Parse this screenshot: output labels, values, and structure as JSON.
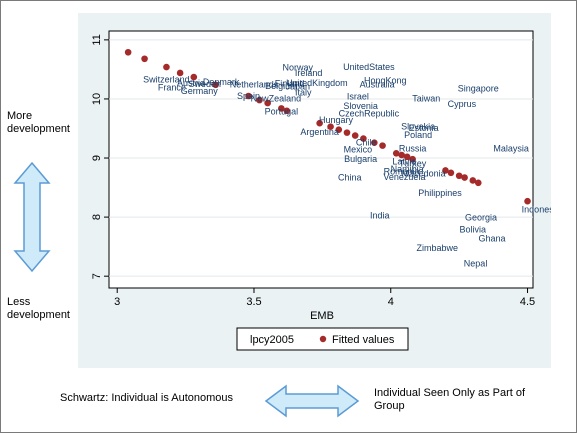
{
  "left_labels": {
    "top": "More development",
    "bottom": "Less development"
  },
  "bottom_labels": {
    "left": "Schwartz: Individual is Autonomous",
    "right": "Individual Seen Only as Part of Group"
  },
  "colors": {
    "panel_bg": "#eaf2f3",
    "plot_bg": "#ffffff",
    "label_text": "#1a3f6b",
    "fitted_marker": "#a52a2a",
    "arrow_fill": "#cfeaf8",
    "arrow_stroke": "#5b9bd5"
  },
  "chart_data": {
    "type": "scatter",
    "xlabel": "EMB",
    "ylabel": "",
    "xlim": [
      2.97,
      4.52
    ],
    "ylim": [
      6.8,
      11.15
    ],
    "xticks": [
      "3",
      "3.5",
      "4",
      "4.5"
    ],
    "yticks": [
      "7",
      "8",
      "9",
      "10",
      "11"
    ],
    "grid": true,
    "legend": {
      "position": "bottom",
      "entries": [
        "lpcy2005",
        "Fitted values"
      ]
    },
    "countries": [
      {
        "label": "Switzerland",
        "x": 3.18,
        "y": 10.32
      },
      {
        "label": "France",
        "x": 3.2,
        "y": 10.18
      },
      {
        "label": "Austria",
        "x": 3.27,
        "y": 10.26
      },
      {
        "label": "Denmark",
        "x": 3.38,
        "y": 10.28
      },
      {
        "label": "Sweden",
        "x": 3.32,
        "y": 10.24
      },
      {
        "label": "Germany",
        "x": 3.3,
        "y": 10.12
      },
      {
        "label": "Netherlands",
        "x": 3.5,
        "y": 10.23
      },
      {
        "label": "Belgium",
        "x": 3.6,
        "y": 10.21
      },
      {
        "label": "Finland",
        "x": 3.63,
        "y": 10.25
      },
      {
        "label": "Norway",
        "x": 3.66,
        "y": 10.52
      },
      {
        "label": "Ireland",
        "x": 3.7,
        "y": 10.43
      },
      {
        "label": "UnitedKingdom",
        "x": 3.73,
        "y": 10.26
      },
      {
        "label": "Japan",
        "x": 3.66,
        "y": 10.2
      },
      {
        "label": "Italy",
        "x": 3.68,
        "y": 10.1
      },
      {
        "label": "Spain",
        "x": 3.48,
        "y": 10.04
      },
      {
        "label": "NewZealand",
        "x": 3.58,
        "y": 10.0
      },
      {
        "label": "Portugal",
        "x": 3.6,
        "y": 9.78
      },
      {
        "label": "UnitedStates",
        "x": 3.92,
        "y": 10.53
      },
      {
        "label": "HongKong",
        "x": 3.98,
        "y": 10.3
      },
      {
        "label": "Australia",
        "x": 3.95,
        "y": 10.23
      },
      {
        "label": "Israel",
        "x": 3.88,
        "y": 10.03
      },
      {
        "label": "Slovenia",
        "x": 3.89,
        "y": 9.87
      },
      {
        "label": "CzechRepublic",
        "x": 3.92,
        "y": 9.74
      },
      {
        "label": "Hungary",
        "x": 3.8,
        "y": 9.63
      },
      {
        "label": "Argentina",
        "x": 3.74,
        "y": 9.43
      },
      {
        "label": "Chile",
        "x": 3.91,
        "y": 9.25
      },
      {
        "label": "Mexico",
        "x": 3.88,
        "y": 9.13
      },
      {
        "label": "Bulgaria",
        "x": 3.89,
        "y": 8.97
      },
      {
        "label": "China",
        "x": 3.85,
        "y": 8.66
      },
      {
        "label": "Taiwan",
        "x": 4.13,
        "y": 10.0
      },
      {
        "label": "Singapore",
        "x": 4.32,
        "y": 10.17
      },
      {
        "label": "Cyprus",
        "x": 4.26,
        "y": 9.9
      },
      {
        "label": "Slovakia",
        "x": 4.1,
        "y": 9.52
      },
      {
        "label": "Estonia",
        "x": 4.12,
        "y": 9.5
      },
      {
        "label": "Poland",
        "x": 4.1,
        "y": 9.38
      },
      {
        "label": "Russia",
        "x": 4.08,
        "y": 9.15
      },
      {
        "label": "Malaysia",
        "x": 4.44,
        "y": 9.15
      },
      {
        "label": "Latvia",
        "x": 4.05,
        "y": 8.93
      },
      {
        "label": "Turkey",
        "x": 4.08,
        "y": 8.9
      },
      {
        "label": "Namibia",
        "x": 4.06,
        "y": 8.8
      },
      {
        "label": "Romania",
        "x": 4.04,
        "y": 8.76
      },
      {
        "label": "Macedonia",
        "x": 4.12,
        "y": 8.73
      },
      {
        "label": "Venezuela",
        "x": 4.05,
        "y": 8.67
      },
      {
        "label": "Philippines",
        "x": 4.18,
        "y": 8.4
      },
      {
        "label": "Indonesia",
        "x": 4.55,
        "y": 8.12
      },
      {
        "label": "India",
        "x": 3.96,
        "y": 8.02
      },
      {
        "label": "Georgia",
        "x": 4.33,
        "y": 7.98
      },
      {
        "label": "Bolivia",
        "x": 4.3,
        "y": 7.78
      },
      {
        "label": "Ghana",
        "x": 4.37,
        "y": 7.63
      },
      {
        "label": "Zimbabwe",
        "x": 4.17,
        "y": 7.47
      },
      {
        "label": "Nepal",
        "x": 4.31,
        "y": 7.2
      }
    ],
    "fitted_values": {
      "x": [
        3.04,
        3.1,
        3.18,
        3.23,
        3.28,
        3.36,
        3.48,
        3.52,
        3.55,
        3.6,
        3.62,
        3.74,
        3.78,
        3.81,
        3.84,
        3.87,
        3.9,
        3.94,
        3.97,
        4.02,
        4.04,
        4.06,
        4.08,
        4.2,
        4.22,
        4.25,
        4.27,
        4.3,
        4.32,
        4.5
      ],
      "y": [
        10.79,
        10.68,
        10.54,
        10.44,
        10.37,
        10.24,
        10.05,
        9.98,
        9.93,
        9.84,
        9.8,
        9.59,
        9.53,
        9.48,
        9.43,
        9.38,
        9.33,
        9.26,
        9.21,
        9.08,
        9.05,
        9.02,
        8.98,
        8.79,
        8.75,
        8.7,
        8.67,
        8.62,
        8.58,
        8.27
      ]
    }
  }
}
